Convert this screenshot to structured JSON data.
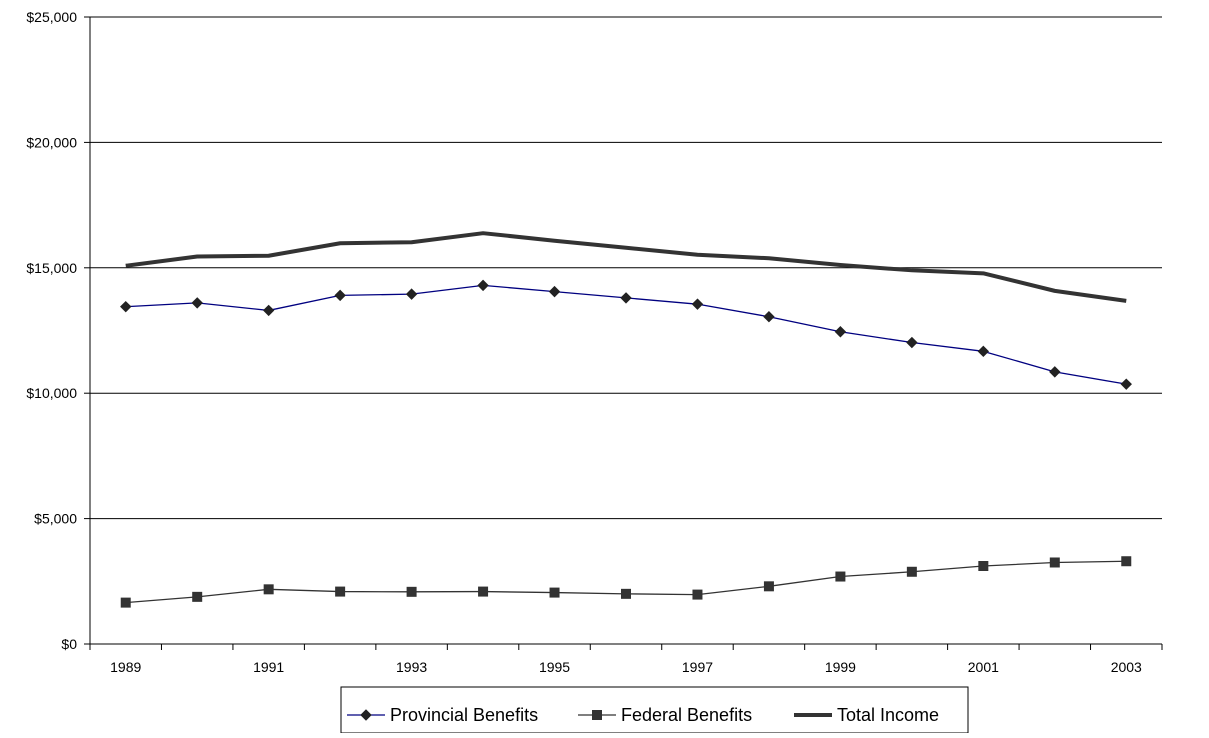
{
  "chart_data": {
    "type": "line",
    "title": "",
    "xlabel": "",
    "ylabel": "",
    "x": [
      1989,
      1990,
      1991,
      1992,
      1993,
      1994,
      1995,
      1996,
      1997,
      1998,
      1999,
      2000,
      2001,
      2002,
      2003
    ],
    "x_tick_labels": [
      "1989",
      "1991",
      "1993",
      "1995",
      "1997",
      "1999",
      "2001",
      "2003"
    ],
    "y_tick_labels": [
      "$0",
      "$5,000",
      "$10,000",
      "$15,000",
      "$20,000",
      "$25,000"
    ],
    "ylim": [
      0,
      25000
    ],
    "grid": "horizontal",
    "legend_position": "bottom",
    "series": [
      {
        "name": "Provincial Benefits",
        "marker": "diamond",
        "color": "#000080",
        "values": [
          13450,
          13600,
          13300,
          13900,
          13950,
          14300,
          14050,
          13800,
          13550,
          13050,
          12450,
          12020,
          11670,
          10850,
          10360
        ]
      },
      {
        "name": "Federal Benefits",
        "marker": "square",
        "color": "#333333",
        "values": [
          1650,
          1880,
          2180,
          2090,
          2080,
          2090,
          2050,
          2000,
          1970,
          2300,
          2690,
          2880,
          3110,
          3250,
          3300
        ]
      },
      {
        "name": "Total Income",
        "marker": "none",
        "color": "#333333",
        "values": [
          15080,
          15450,
          15480,
          15980,
          16020,
          16380,
          16080,
          15800,
          15520,
          15380,
          15110,
          14900,
          14780,
          14080,
          13680
        ]
      }
    ]
  }
}
